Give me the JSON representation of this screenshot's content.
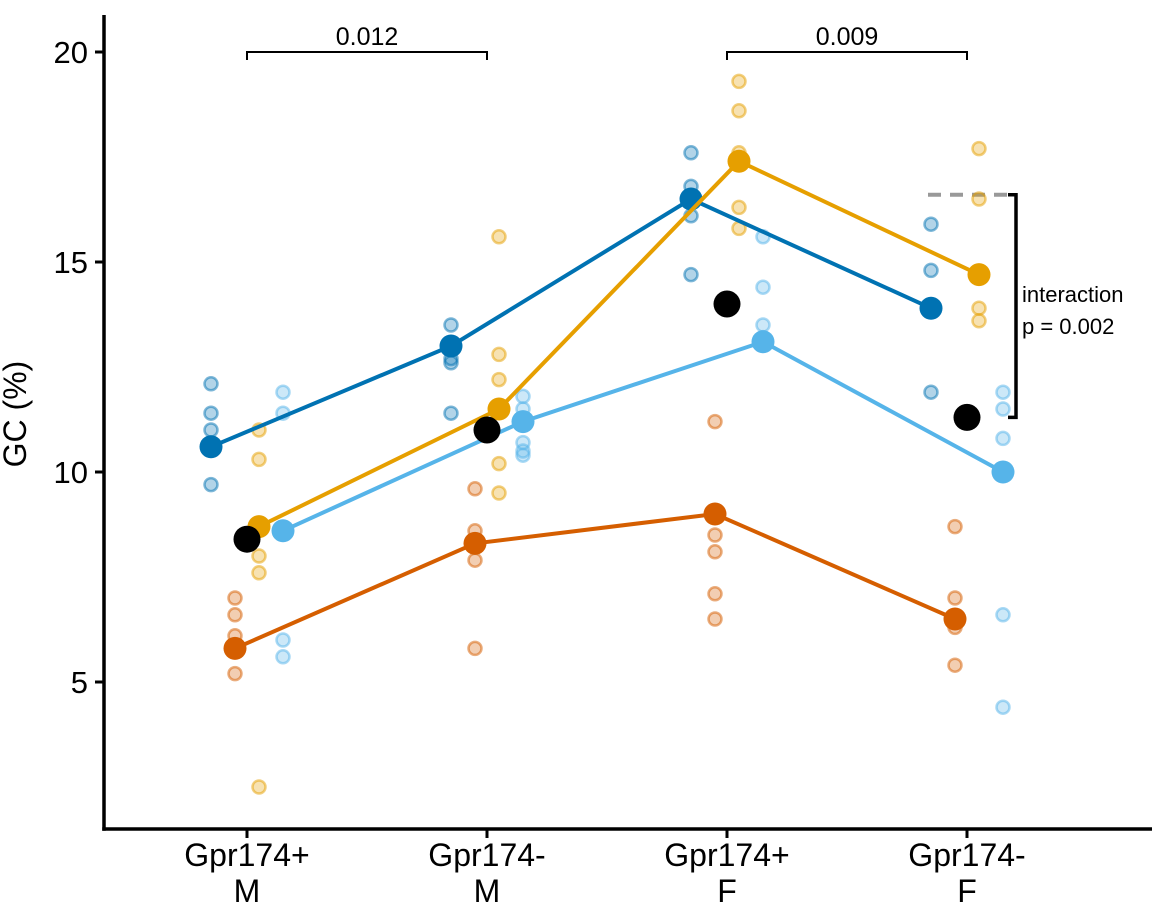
{
  "figure": {
    "background": "#ffffff",
    "axis_color": "#000000"
  },
  "chart_data": {
    "type": "line",
    "title": "",
    "xlabel": "",
    "ylabel": "GC (%)",
    "ylim": [
      2,
      20.5
    ],
    "grid": false,
    "legend": "none",
    "y_ticks": [
      {
        "value": 20,
        "label": "20"
      },
      {
        "value": 15,
        "label": "15"
      },
      {
        "value": 10,
        "label": "10"
      },
      {
        "value": 5,
        "label": "5"
      }
    ],
    "categories": [
      {
        "line1": "Gpr174+",
        "line2": "M"
      },
      {
        "line1": "Gpr174-",
        "line2": "M"
      },
      {
        "line1": "Gpr174+",
        "line2": "F"
      },
      {
        "line1": "Gpr174-",
        "line2": "F"
      }
    ],
    "series": [
      {
        "name": "dark-blue-group",
        "color": "#0072B2",
        "dodge_offset": -36,
        "means": [
          10.6,
          13.0,
          16.5,
          13.9
        ],
        "points": [
          [
            12.1,
            11.4,
            11.0,
            9.7
          ],
          [
            13.5,
            12.7,
            12.6,
            11.4
          ],
          [
            17.6,
            16.8,
            16.1,
            14.7
          ],
          [
            15.9,
            14.8,
            11.9
          ]
        ]
      },
      {
        "name": "vermillion-group",
        "color": "#D55E00",
        "dodge_offset": -12,
        "means": [
          5.8,
          8.3,
          9.0,
          6.5
        ],
        "points": [
          [
            7.0,
            6.6,
            6.1,
            5.2
          ],
          [
            9.6,
            8.6,
            7.9,
            5.8
          ],
          [
            11.2,
            8.5,
            8.1,
            7.1,
            6.5
          ],
          [
            8.7,
            7.0,
            6.3,
            5.4
          ]
        ]
      },
      {
        "name": "sky-blue-group",
        "color": "#56B4E9",
        "dodge_offset": 36,
        "means": [
          8.6,
          11.2,
          13.1,
          10.0
        ],
        "points": [
          [
            11.9,
            11.4,
            6.0,
            5.6
          ],
          [
            11.8,
            11.5,
            10.7,
            10.5,
            10.4
          ],
          [
            15.6,
            14.4,
            13.5,
            13.2
          ],
          [
            11.9,
            11.5,
            10.8,
            6.6,
            4.4
          ]
        ]
      },
      {
        "name": "orange-group",
        "color": "#E69F00",
        "dodge_offset": 12,
        "means": [
          8.7,
          11.5,
          17.4,
          14.7
        ],
        "points": [
          [
            11.0,
            10.3,
            8.0,
            7.6,
            2.5
          ],
          [
            15.6,
            12.8,
            12.2,
            10.2,
            9.5
          ],
          [
            19.3,
            18.6,
            17.6,
            16.3,
            15.8
          ],
          [
            17.7,
            16.5,
            13.9,
            13.6
          ]
        ]
      }
    ],
    "overall_means": {
      "name": "black-overall-mean",
      "color": "#000000",
      "values": [
        8.4,
        11.0,
        14.0,
        11.3
      ]
    },
    "annotations": {
      "sig_brackets": [
        {
          "label": "0.012",
          "from_category": 0,
          "to_category": 1,
          "y": 20.0
        },
        {
          "label": "0.009",
          "from_category": 2,
          "to_category": 3,
          "y": 20.0
        }
      ],
      "interaction_bracket": {
        "label_line1": "interaction",
        "label_line2": "p = 0.002",
        "y_top": 16.6,
        "y_bottom": 11.3
      },
      "dashed_reference_line": {
        "y": 16.6,
        "color": "#999999"
      }
    }
  }
}
